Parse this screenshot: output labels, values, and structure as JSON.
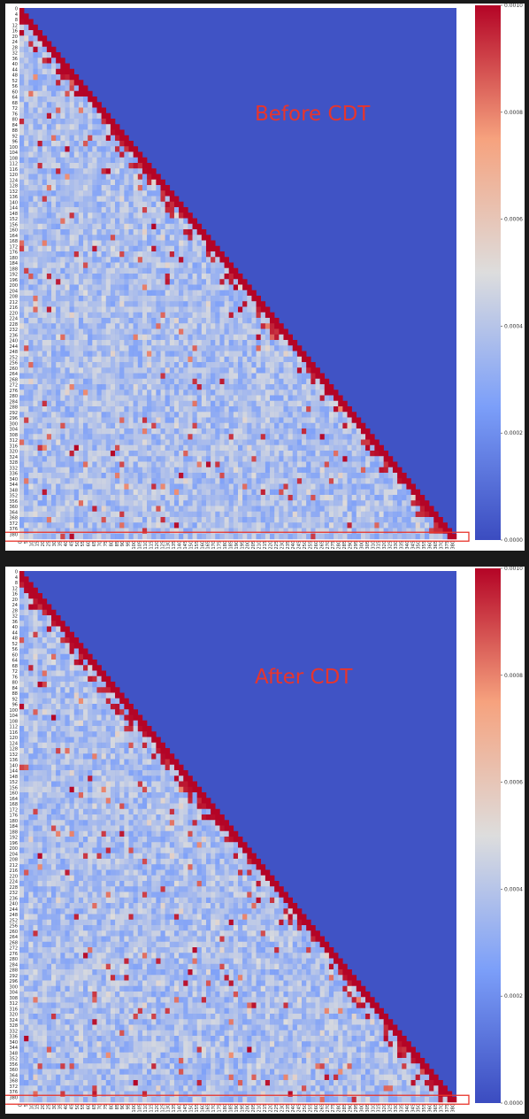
{
  "chart_data": [
    {
      "type": "heatmap",
      "annotation": "Before CDT",
      "x_ticks": [
        "0",
        "5",
        "10",
        "15",
        "20",
        "25",
        "30",
        "35",
        "40",
        "45",
        "50",
        "55",
        "60",
        "65",
        "70",
        "75",
        "80",
        "85",
        "90",
        "95",
        "100",
        "105",
        "110",
        "115",
        "120",
        "125",
        "130",
        "135",
        "140",
        "145",
        "150",
        "155",
        "160",
        "165",
        "170",
        "175",
        "180",
        "185",
        "190",
        "195",
        "200",
        "205",
        "210",
        "215",
        "220",
        "225",
        "230",
        "235",
        "240",
        "245",
        "250",
        "255",
        "260",
        "265",
        "270",
        "275",
        "280",
        "285",
        "290",
        "295",
        "300",
        "305",
        "310",
        "315",
        "320",
        "325",
        "330",
        "335",
        "340",
        "345",
        "350",
        "355",
        "360",
        "365",
        "370",
        "375",
        "380"
      ],
      "y_ticks": [
        "0",
        "4",
        "8",
        "12",
        "16",
        "20",
        "24",
        "28",
        "32",
        "36",
        "40",
        "44",
        "48",
        "52",
        "56",
        "60",
        "64",
        "68",
        "72",
        "76",
        "80",
        "84",
        "88",
        "92",
        "96",
        "100",
        "104",
        "108",
        "112",
        "116",
        "120",
        "124",
        "128",
        "132",
        "136",
        "140",
        "144",
        "148",
        "152",
        "156",
        "160",
        "164",
        "168",
        "172",
        "176",
        "180",
        "184",
        "188",
        "192",
        "196",
        "200",
        "204",
        "208",
        "212",
        "216",
        "220",
        "224",
        "228",
        "232",
        "236",
        "240",
        "244",
        "248",
        "252",
        "256",
        "260",
        "264",
        "268",
        "272",
        "276",
        "280",
        "284",
        "288",
        "292",
        "296",
        "300",
        "304",
        "308",
        "312",
        "316",
        "320",
        "324",
        "328",
        "332",
        "336",
        "340",
        "344",
        "348",
        "352",
        "356",
        "360",
        "364",
        "368",
        "372",
        "376",
        "380"
      ],
      "n": 384,
      "colorbar": {
        "min": 0.0,
        "max": 0.001,
        "ticks": [
          "0.0000",
          "0.0002",
          "0.0004",
          "0.0006",
          "0.0008",
          "0.0010"
        ],
        "colormap": "coolwarm"
      },
      "structure": "lower-triangular matrix; upper triangle = minimum (blue); diagonal band = maximum (red); off-diagonal mostly 0.0002-0.0005",
      "highlight_row": "380"
    },
    {
      "type": "heatmap",
      "annotation": "After CDT",
      "x_ticks": [
        "0",
        "5",
        "10",
        "15",
        "20",
        "25",
        "30",
        "35",
        "40",
        "45",
        "50",
        "55",
        "60",
        "65",
        "70",
        "75",
        "80",
        "85",
        "90",
        "95",
        "100",
        "105",
        "110",
        "115",
        "120",
        "125",
        "130",
        "135",
        "140",
        "145",
        "150",
        "155",
        "160",
        "165",
        "170",
        "175",
        "180",
        "185",
        "190",
        "195",
        "200",
        "205",
        "210",
        "215",
        "220",
        "225",
        "230",
        "235",
        "240",
        "245",
        "250",
        "255",
        "260",
        "265",
        "270",
        "275",
        "280",
        "285",
        "290",
        "295",
        "300",
        "305",
        "310",
        "315",
        "320",
        "325",
        "330",
        "335",
        "340",
        "345",
        "350",
        "355",
        "360",
        "365",
        "370",
        "375",
        "380"
      ],
      "y_ticks": [
        "0",
        "4",
        "8",
        "12",
        "16",
        "20",
        "24",
        "28",
        "32",
        "36",
        "40",
        "44",
        "48",
        "52",
        "56",
        "60",
        "64",
        "68",
        "72",
        "76",
        "80",
        "84",
        "88",
        "92",
        "96",
        "100",
        "104",
        "108",
        "112",
        "116",
        "120",
        "124",
        "128",
        "132",
        "136",
        "140",
        "144",
        "148",
        "152",
        "156",
        "160",
        "164",
        "168",
        "172",
        "176",
        "180",
        "184",
        "188",
        "192",
        "196",
        "200",
        "204",
        "208",
        "212",
        "216",
        "220",
        "224",
        "228",
        "232",
        "236",
        "240",
        "244",
        "248",
        "252",
        "256",
        "260",
        "264",
        "268",
        "272",
        "276",
        "280",
        "284",
        "288",
        "292",
        "296",
        "300",
        "304",
        "308",
        "312",
        "316",
        "320",
        "324",
        "328",
        "332",
        "336",
        "340",
        "344",
        "348",
        "352",
        "356",
        "360",
        "364",
        "368",
        "372",
        "376",
        "380"
      ],
      "n": 384,
      "colorbar": {
        "min": 0.0,
        "max": 0.001,
        "ticks": [
          "0.0000",
          "0.0002",
          "0.0004",
          "0.0006",
          "0.0008",
          "0.0010"
        ],
        "colormap": "coolwarm"
      },
      "structure": "lower-triangular matrix; upper triangle = minimum (blue); diagonal band = maximum (red); off-diagonal mostly 0.0002-0.0005",
      "highlight_row": "380"
    }
  ],
  "colors": {
    "low": "#3b4cc0",
    "mid": "#dddddd",
    "high": "#b40426",
    "highlight": "#e8352c"
  }
}
